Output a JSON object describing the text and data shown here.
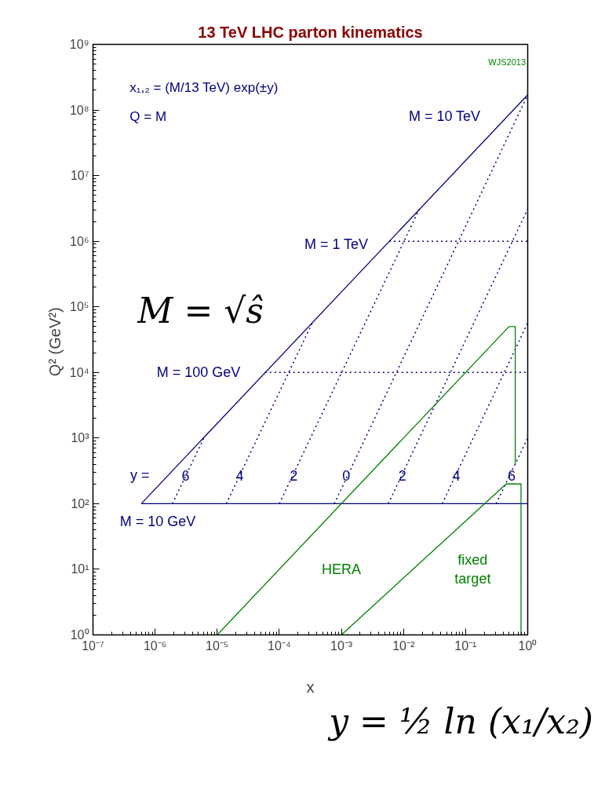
{
  "chart_data": {
    "type": "line",
    "title": "13 TeV LHC parton kinematics",
    "xlabel": "x",
    "ylabel": "Q²  (GeV²)",
    "log": "xy",
    "grid": false,
    "xlim": [
      1e-07,
      1
    ],
    "ylim": [
      1,
      1000000000.0
    ],
    "xticks": [
      {
        "value": 1e-07,
        "label": "10⁻⁷"
      },
      {
        "value": 1e-06,
        "label": "10⁻⁶"
      },
      {
        "value": 1e-05,
        "label": "10⁻⁵"
      },
      {
        "value": 0.0001,
        "label": "10⁻⁴"
      },
      {
        "value": 0.001,
        "label": "10⁻³"
      },
      {
        "value": 0.01,
        "label": "10⁻²"
      },
      {
        "value": 0.1,
        "label": "10⁻¹"
      },
      {
        "value": 1,
        "label": "10⁰"
      }
    ],
    "yticks": [
      {
        "value": 1,
        "label": "10⁰"
      },
      {
        "value": 10,
        "label": "10¹"
      },
      {
        "value": 100,
        "label": "10²"
      },
      {
        "value": 1000,
        "label": "10³"
      },
      {
        "value": 10000,
        "label": "10⁴"
      },
      {
        "value": 100000,
        "label": "10⁵"
      },
      {
        "value": 1000000,
        "label": "10⁶"
      },
      {
        "value": 10000000,
        "label": "10⁷"
      },
      {
        "value": 100000000,
        "label": "10⁸"
      },
      {
        "value": 1000000000,
        "label": "10⁹"
      }
    ],
    "series": [
      {
        "color": "#000080",
        "line_style": "solid",
        "x": [
          6e-07,
          1
        ],
        "values": [
          100,
          170000000.0
        ]
      },
      {
        "color": "#000080",
        "line_style": "solid",
        "x": [
          6e-07,
          1
        ],
        "values": [
          100,
          100
        ]
      },
      {
        "color": "#000080",
        "line_style": "dotted",
        "x": [
          1.9e-06,
          6.1e-06
        ],
        "values": [
          100,
          1000
        ]
      },
      {
        "color": "#000080",
        "line_style": "dotted",
        "x": [
          1.4e-05,
          0.00034
        ],
        "values": [
          100,
          57000
        ]
      },
      {
        "color": "#000080",
        "line_style": "dotted",
        "x": [
          0.0001,
          0.018
        ],
        "values": [
          100,
          3100000
        ]
      },
      {
        "color": "#000080",
        "line_style": "dotted",
        "x": [
          0.00077,
          1
        ],
        "values": [
          100,
          170000000.0
        ]
      },
      {
        "color": "#000080",
        "line_style": "dotted",
        "x": [
          0.0057,
          1
        ],
        "values": [
          100,
          3100000
        ]
      },
      {
        "color": "#000080",
        "line_style": "dotted",
        "x": [
          0.042,
          1
        ],
        "values": [
          100,
          57000
        ]
      },
      {
        "color": "#000080",
        "line_style": "dotted",
        "x": [
          0.31,
          1
        ],
        "values": [
          100,
          1000
        ]
      },
      {
        "color": "#000080",
        "line_style": "dotted",
        "x": [
          5.9e-05,
          1
        ],
        "values": [
          10000,
          10000
        ]
      },
      {
        "color": "#000080",
        "line_style": "dotted",
        "x": [
          0.0059,
          1
        ],
        "values": [
          1000000,
          1000000
        ]
      },
      {
        "color": "#008000",
        "line_style": "solid",
        "x": [
          1e-05,
          0.5,
          0.63,
          0.63
        ],
        "values": [
          1,
          50000,
          50000,
          400
        ]
      },
      {
        "color": "#008000",
        "line_style": "solid",
        "x": [
          0.001,
          0.45,
          0.78,
          0.78
        ],
        "values": [
          1,
          200,
          200,
          1
        ]
      }
    ],
    "annotations": [
      "x₁,₂ = (M/13 TeV) exp(±y)",
      "Q = M",
      "WJS2013",
      "M = √ŝ",
      "y = ½ ln (x₁/x₂)",
      "M = 10 TeV",
      "M = 1 TeV",
      "M = 100 GeV",
      "M = 10 GeV",
      "y =",
      "6",
      "4",
      "2",
      "0",
      "2",
      "4",
      "6",
      "HERA",
      "fixed\ntarget"
    ]
  }
}
